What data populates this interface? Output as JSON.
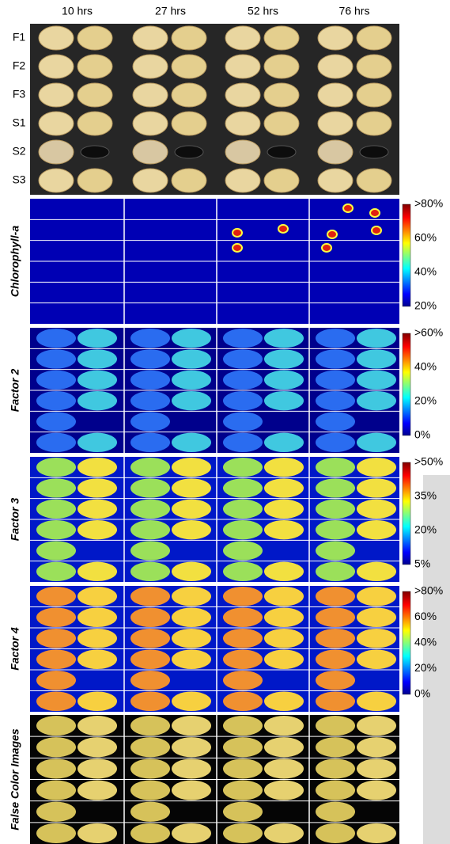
{
  "columns": [
    "10 hrs",
    "27 hrs",
    "52 hrs",
    "76 hrs"
  ],
  "rows": [
    "F1",
    "F2",
    "F3",
    "S1",
    "S2",
    "S3"
  ],
  "panels": [
    {
      "label": "Chlorophyll-a",
      "scale": [
        ">80%",
        "60%",
        "40%",
        "20%"
      ]
    },
    {
      "label": "Factor 2",
      "scale": [
        ">60%",
        "40%",
        "20%",
        "0%"
      ]
    },
    {
      "label": "Factor 3",
      "scale": [
        ">50%",
        "35%",
        "20%",
        "5%"
      ]
    },
    {
      "label": "Factor 4",
      "scale": [
        ">80%",
        "60%",
        "40%",
        "20%",
        "0%"
      ]
    },
    {
      "label": "False Color Images"
    }
  ]
}
